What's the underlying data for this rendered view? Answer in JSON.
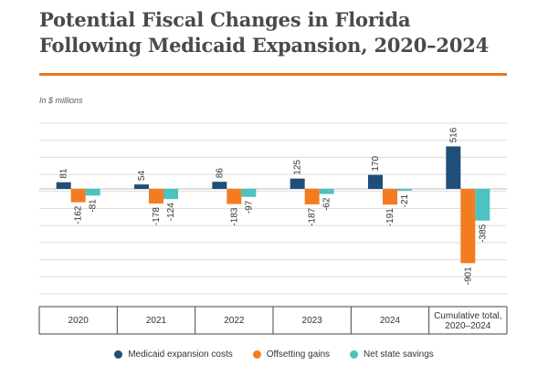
{
  "title": "Potential Fiscal Changes in Florida Following Medicaid Expansion, 2020–2024",
  "unit_label": "In $ millions",
  "colors": {
    "medicaid": "#1f4e79",
    "offsetting": "#f47c20",
    "net": "#4cc3c1",
    "rule": "#e8791f"
  },
  "chart_data": {
    "type": "bar",
    "title": "Potential Fiscal Changes in Florida Following Medicaid Expansion, 2020–2024",
    "ylabel": "In $ millions",
    "categories": [
      "2020",
      "2021",
      "2022",
      "2023",
      "2024",
      "Cumulative total, 2020–2024"
    ],
    "series": [
      {
        "name": "Medicaid expansion costs",
        "values": [
          81,
          54,
          86,
          125,
          170,
          516
        ]
      },
      {
        "name": "Offsetting gains",
        "values": [
          -162,
          -178,
          -183,
          -187,
          -191,
          -901
        ]
      },
      {
        "name": "Net state savings",
        "values": [
          -81,
          -124,
          -97,
          -62,
          -21,
          -385
        ]
      }
    ],
    "ylim": [
      -1000,
      600
    ],
    "grid": true,
    "legend": "bottom"
  }
}
